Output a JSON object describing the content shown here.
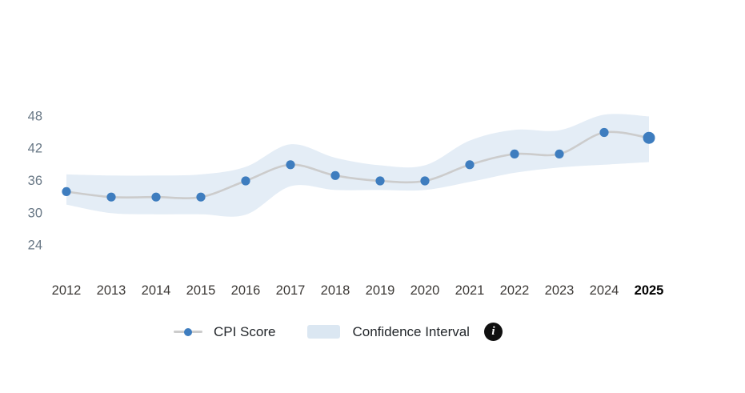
{
  "chart_data": {
    "type": "line",
    "title": "",
    "xlabel": "",
    "ylabel": "",
    "x": [
      "2012",
      "2013",
      "2014",
      "2015",
      "2016",
      "2017",
      "2018",
      "2019",
      "2020",
      "2021",
      "2022",
      "2023",
      "2024",
      "2025"
    ],
    "series": [
      {
        "name": "CPI Score",
        "values": [
          34,
          33,
          33,
          33,
          36,
          39,
          37,
          36,
          36,
          39,
          41,
          41,
          45,
          44
        ]
      }
    ],
    "confidence_interval": {
      "name": "Confidence Interval",
      "upper": [
        37.2,
        37.0,
        37.0,
        37.2,
        38.6,
        42.8,
        40.3,
        38.9,
        38.9,
        43.5,
        45.5,
        45.4,
        48.3,
        48.0
      ],
      "lower": [
        31.6,
        30.0,
        29.8,
        29.8,
        29.7,
        35.0,
        34.3,
        34.3,
        34.3,
        35.8,
        37.5,
        38.5,
        39.0,
        39.5
      ]
    },
    "y_ticks": [
      48,
      42,
      36,
      30,
      24
    ],
    "ylim": [
      22,
      51
    ],
    "grid": false,
    "legend_position": "bottom",
    "highlighted_x": "2025"
  },
  "legend": {
    "cpi_label": "CPI Score",
    "ci_label": "Confidence Interval",
    "info_glyph": "i"
  },
  "colors": {
    "point": "#3e7dbf",
    "line": "#cccccc",
    "band": "#e4edf6",
    "swatch": "#dbe7f2",
    "y_tick_text": "#697886",
    "x_tick_text": "#3d3a37",
    "x_tick_active_text": "#000000",
    "legend_text": "#23272b",
    "info_bg": "#101010",
    "info_fg": "#ffffff"
  }
}
